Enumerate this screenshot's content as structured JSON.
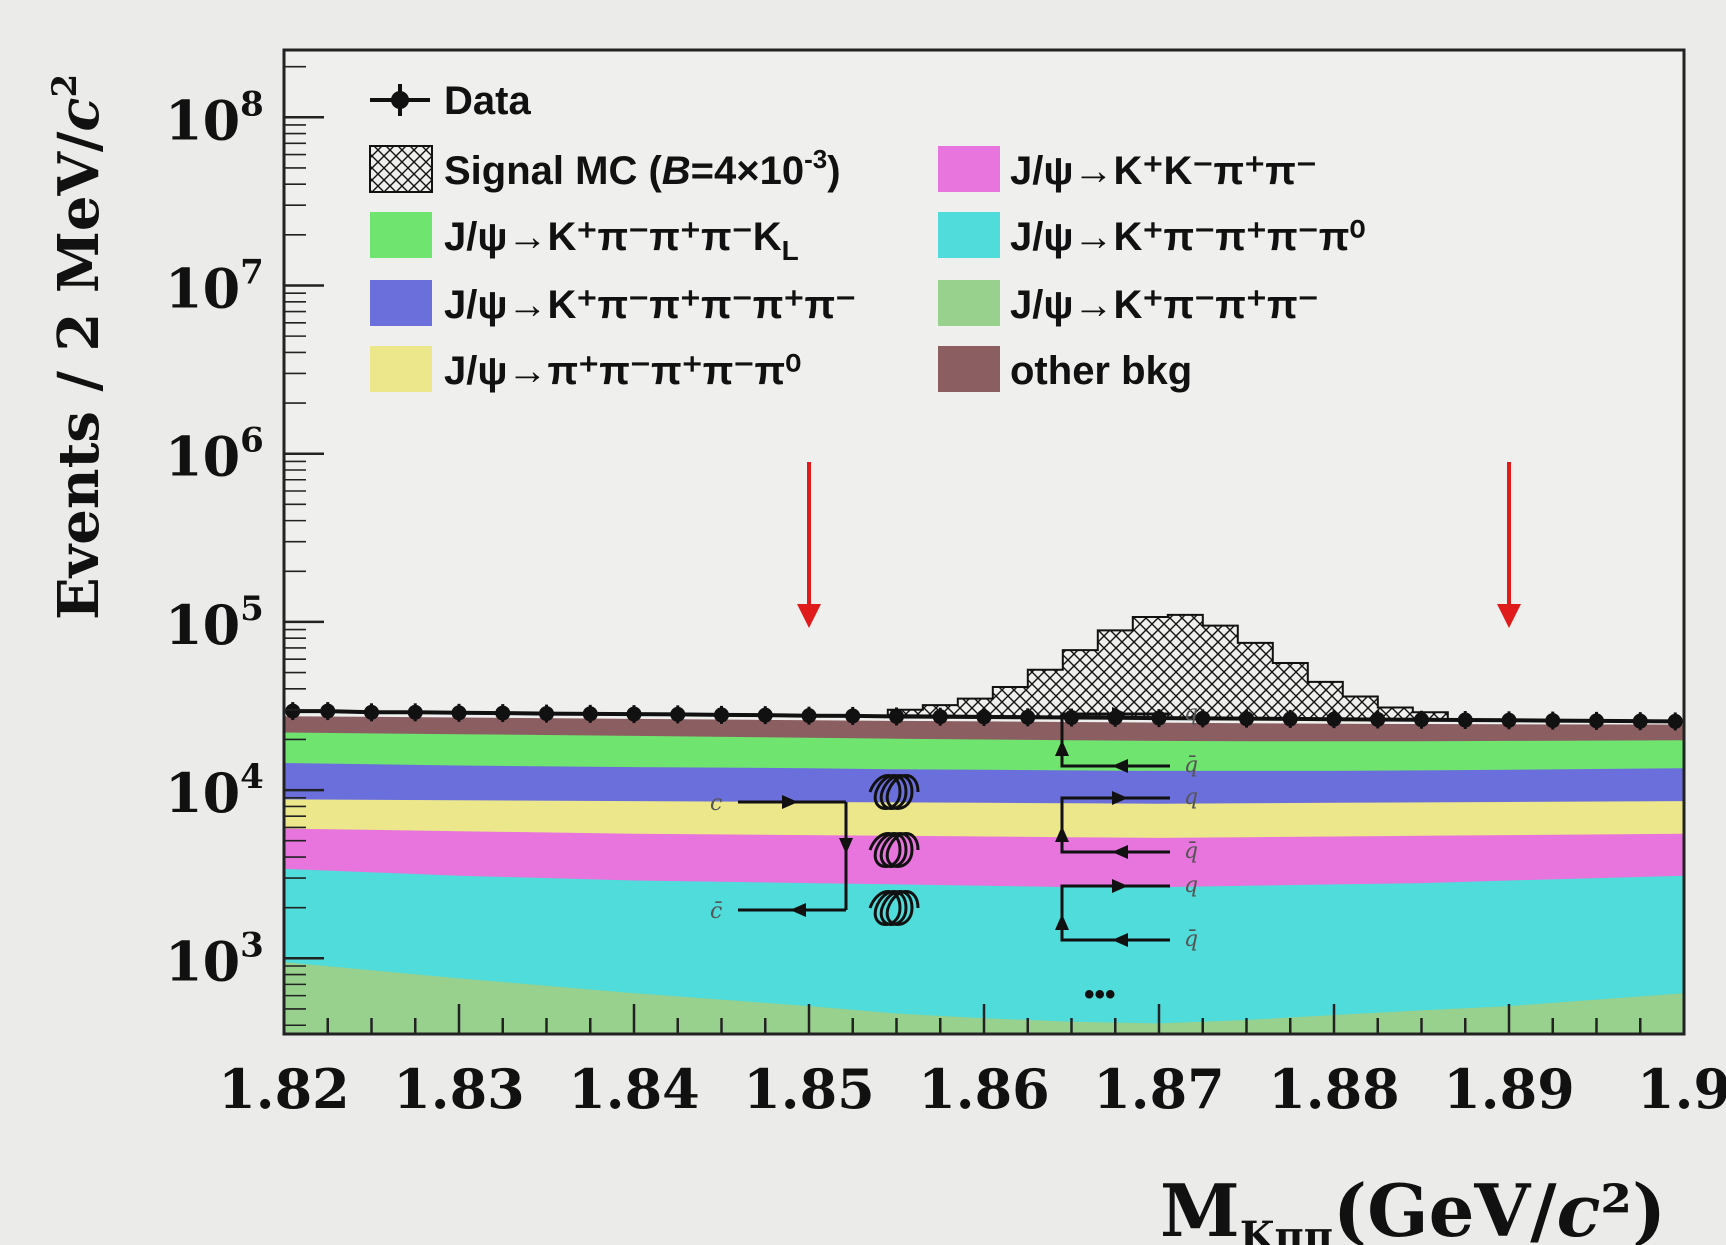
{
  "chart_data": {
    "type": "area",
    "xlabel_main": "M",
    "xlabel_sub": "Kππ",
    "xlabel_unit_pre": "(GeV/",
    "xlabel_unit_c": "c",
    "xlabel_unit_post": "²)",
    "ylabel_pre": "Events / 2 MeV/",
    "ylabel_c": "c",
    "ylabel_exp": "2",
    "xlim": [
      1.82,
      1.9
    ],
    "ylim_log10": [
      2.55,
      8.4
    ],
    "y_scale": "log",
    "x_ticks": [
      "1.82",
      "1.83",
      "1.84",
      "1.85",
      "1.86",
      "1.87",
      "1.88",
      "1.89",
      "1.9"
    ],
    "y_ticks": [
      {
        "base": "10",
        "exp": "3",
        "log": 3
      },
      {
        "base": "10",
        "exp": "4",
        "log": 4
      },
      {
        "base": "10",
        "exp": "5",
        "log": 5
      },
      {
        "base": "10",
        "exp": "6",
        "log": 6
      },
      {
        "base": "10",
        "exp": "7",
        "log": 7
      },
      {
        "base": "10",
        "exp": "8",
        "log": 8
      }
    ],
    "cut_arrows_x": [
      1.85,
      1.89
    ],
    "x": [
      1.82,
      1.83,
      1.84,
      1.85,
      1.855,
      1.86,
      1.865,
      1.87,
      1.875,
      1.88,
      1.885,
      1.89,
      1.9
    ],
    "stack_totals": [
      {
        "name": "J/ψ→K⁺π⁻π⁺π⁻",
        "color": "#98d08e",
        "values": [
          950,
          760,
          620,
          520,
          470,
          440,
          420,
          410,
          430,
          460,
          490,
          520,
          620
        ]
      },
      {
        "name": "J/ψ→K⁺π⁻π⁺π⁻π⁰",
        "color": "#4fdcda",
        "values": [
          3400,
          3100,
          2900,
          2800,
          2750,
          2700,
          2650,
          2650,
          2700,
          2750,
          2800,
          2900,
          3100
        ]
      },
      {
        "name": "J/ψ→K⁺K⁻π⁺π⁻",
        "color": "#e874dd",
        "values": [
          5900,
          5700,
          5500,
          5400,
          5350,
          5300,
          5250,
          5200,
          5250,
          5300,
          5350,
          5400,
          5500
        ]
      },
      {
        "name": "J/ψ→π⁺π⁻π⁺π⁻π⁰",
        "color": "#ece78a",
        "values": [
          8800,
          8700,
          8600,
          8500,
          8450,
          8400,
          8350,
          8300,
          8350,
          8400,
          8450,
          8500,
          8600
        ]
      },
      {
        "name": "J/ψ→K⁺π⁻π⁺π⁻π⁺π⁻",
        "color": "#6b6fdb",
        "values": [
          14500,
          14000,
          13700,
          13500,
          13300,
          13200,
          13100,
          13000,
          13000,
          13000,
          13100,
          13200,
          13500
        ]
      },
      {
        "name": "J/ψ→K⁺π⁻π⁺π⁻K_L",
        "color": "#6fe46f",
        "values": [
          22000,
          21500,
          21000,
          20500,
          20200,
          20000,
          19800,
          19600,
          19500,
          19500,
          19500,
          19600,
          19800
        ]
      },
      {
        "name": "other bkg",
        "color": "#8b5e62",
        "values": [
          27500,
          27000,
          26500,
          26000,
          25800,
          25600,
          25400,
          25200,
          25000,
          24800,
          24700,
          24600,
          24500
        ]
      }
    ],
    "data_points": {
      "x": [
        1.8205,
        1.8225,
        1.825,
        1.8275,
        1.83,
        1.8325,
        1.835,
        1.8375,
        1.84,
        1.8425,
        1.845,
        1.8475,
        1.85,
        1.8525,
        1.855,
        1.8575,
        1.86,
        1.8625,
        1.865,
        1.8675,
        1.87,
        1.8725,
        1.875,
        1.8775,
        1.88,
        1.8825,
        1.885,
        1.8875,
        1.89,
        1.8925,
        1.895,
        1.8975,
        1.8995
      ],
      "y": [
        29500,
        29500,
        29000,
        29000,
        28800,
        28700,
        28500,
        28400,
        28300,
        28200,
        28000,
        27900,
        27700,
        27600,
        27400,
        27300,
        27200,
        27100,
        27000,
        26900,
        26800,
        26700,
        26600,
        26500,
        26400,
        26300,
        26200,
        26100,
        26000,
        25900,
        25800,
        25700,
        25600
      ]
    },
    "signal_mc": {
      "bins": [
        1.8545,
        1.8565,
        1.8585,
        1.8605,
        1.8625,
        1.8645,
        1.8665,
        1.8685,
        1.8705,
        1.8725,
        1.8745,
        1.8765,
        1.8785,
        1.8805,
        1.8825,
        1.8845,
        1.8865
      ],
      "values": [
        30000,
        32000,
        35000,
        41000,
        52000,
        68000,
        89000,
        107000,
        110000,
        95000,
        75000,
        57000,
        44000,
        36000,
        31000,
        29000
      ]
    },
    "legend": {
      "data": "Data",
      "signal_pre": "Signal MC (",
      "signal_B": "B",
      "signal_mid": "=4×10",
      "signal_exp": "-3",
      "signal_post": ")",
      "kkpipi": "J/ψ→K⁺K⁻π⁺π⁻",
      "kpipipikl_main": "J/ψ→K⁺π⁻π⁺π⁻K",
      "kpipipikl_sub": "L",
      "kpipipipi0": "J/ψ→K⁺π⁻π⁺π⁻π⁰",
      "kpipipipipipi": "J/ψ→K⁺π⁻π⁺π⁻π⁺π⁻",
      "kpipipi": "J/ψ→K⁺π⁻π⁺π⁻",
      "pipipipipi0": "J/ψ→π⁺π⁻π⁺π⁻π⁰",
      "other": "other bkg"
    },
    "feynman": {
      "c": "c",
      "cbar": "c̄",
      "q": "q",
      "qbar": "q̄",
      "ellipsis": "•••"
    }
  }
}
